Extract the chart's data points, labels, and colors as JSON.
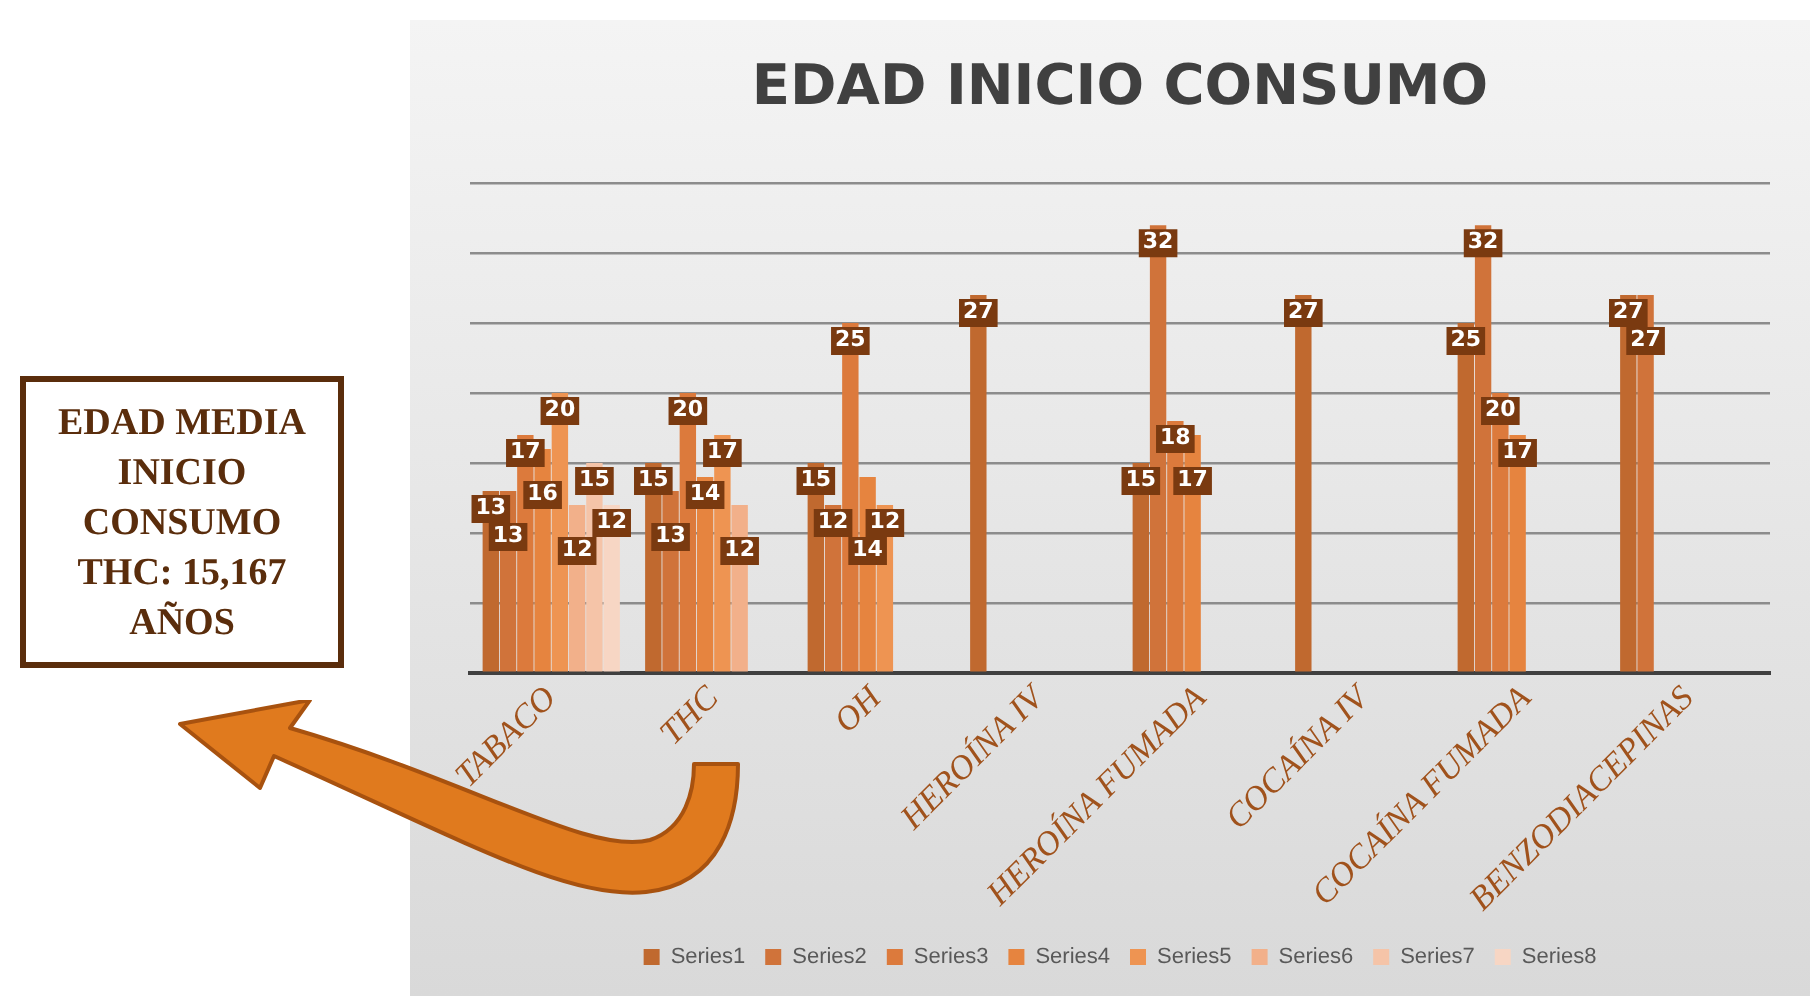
{
  "chart_data": {
    "type": "bar",
    "title": "EDAD INICIO CONSUMO",
    "categories": [
      "TABACO",
      "THC",
      "OH",
      "HEROÍNA IV",
      "HEROÍNA FUMADA",
      "COCAÍNA IV",
      "COCAÍNA FUMADA",
      "BENZODIACEPINAS"
    ],
    "series": [
      {
        "name": "Series1",
        "color": "#c0692f",
        "values": [
          13,
          15,
          15,
          27,
          15,
          27,
          25,
          27
        ]
      },
      {
        "name": "Series2",
        "color": "#d0733a",
        "values": [
          13,
          13,
          12,
          null,
          32,
          null,
          32,
          27
        ]
      },
      {
        "name": "Series3",
        "color": "#dc7a3c",
        "values": [
          17,
          20,
          25,
          null,
          18,
          null,
          20,
          null
        ]
      },
      {
        "name": "Series4",
        "color": "#e6843f",
        "values": [
          16,
          14,
          14,
          null,
          17,
          null,
          17,
          null
        ]
      },
      {
        "name": "Series5",
        "color": "#ee9452",
        "values": [
          20,
          17,
          12,
          null,
          null,
          null,
          null,
          null
        ]
      },
      {
        "name": "Series6",
        "color": "#f2b08a",
        "values": [
          12,
          12,
          null,
          null,
          null,
          null,
          null,
          null
        ]
      },
      {
        "name": "Series7",
        "color": "#f5c4a8",
        "values": [
          15,
          null,
          null,
          null,
          null,
          null,
          null,
          null
        ]
      },
      {
        "name": "Series8",
        "color": "#f7d6c4",
        "values": [
          12,
          null,
          null,
          null,
          null,
          null,
          null,
          null
        ]
      }
    ],
    "ylim": [
      0,
      35
    ],
    "yticks": [
      0,
      5,
      10,
      15,
      20,
      25,
      30,
      35
    ],
    "tick_labels": "x",
    "grid": "y",
    "legend": "bottom",
    "data_labels": true,
    "annotations": [
      "EDAD MEDIA INICIO CONSUMO THC: 15,167 AÑOS"
    ]
  }
}
